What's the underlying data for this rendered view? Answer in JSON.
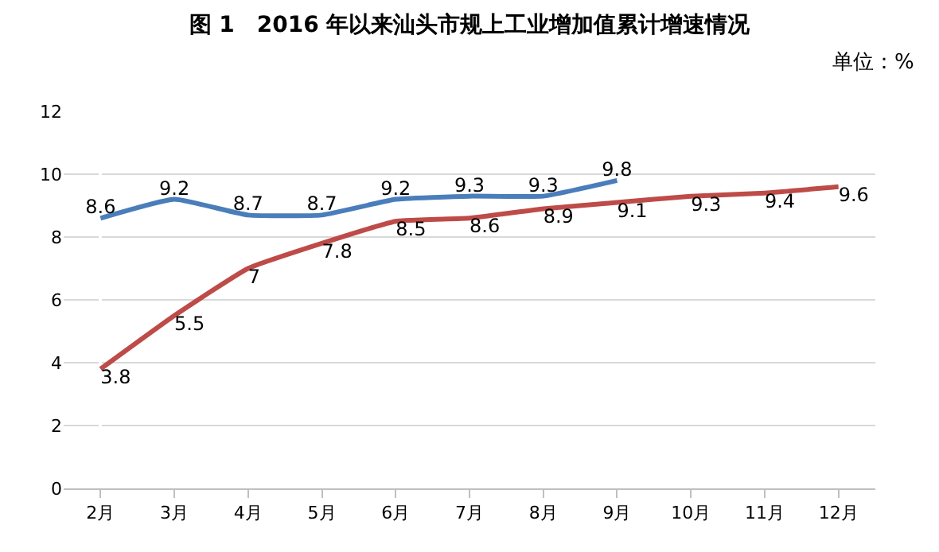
{
  "chart_data": {
    "type": "line",
    "title": "图 1　2016 年以来汕头市规上工业增加值累计增速情况",
    "subtitle": "单位：%",
    "categories": [
      "2月",
      "3月",
      "4月",
      "5月",
      "6月",
      "7月",
      "8月",
      "9月",
      "10月",
      "11月",
      "12月"
    ],
    "series": [
      {
        "color": "#4a7ebb",
        "values": [
          8.6,
          9.2,
          8.7,
          8.7,
          9.2,
          9.3,
          9.3,
          9.8,
          null,
          null,
          null
        ]
      },
      {
        "color": "#be4b48",
        "values": [
          3.8,
          5.5,
          7,
          7.8,
          8.5,
          8.6,
          8.9,
          9.1,
          9.3,
          9.4,
          9.6
        ]
      }
    ],
    "ylim": [
      0,
      12
    ],
    "yticks": [
      0,
      2,
      4,
      6,
      8,
      10,
      12
    ],
    "grid": "y",
    "data_labels": true
  }
}
